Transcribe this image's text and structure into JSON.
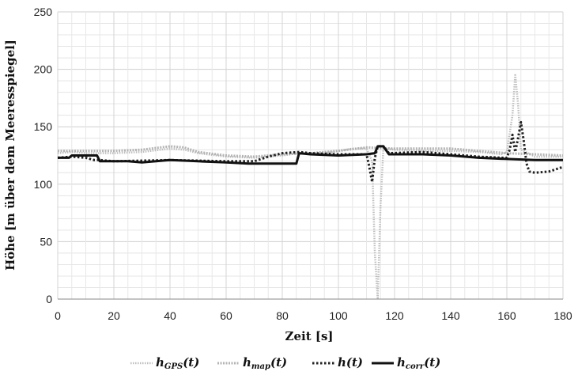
{
  "chart_data": {
    "type": "line",
    "title": "",
    "xlabel": "Zeit [s]",
    "ylabel": "Höhe [m über dem Meeresspiegel]",
    "xlim": [
      0,
      180
    ],
    "ylim": [
      0,
      250
    ],
    "x_ticks": [
      0,
      20,
      40,
      60,
      80,
      100,
      120,
      140,
      160,
      180
    ],
    "y_ticks": [
      0,
      50,
      100,
      150,
      200,
      250
    ],
    "grid": true,
    "legend_position": "bottom",
    "series": [
      {
        "name": "hGPS(t)",
        "legend": {
          "main": "h",
          "sub": "GPS",
          "suffix": "(t)"
        },
        "style": "dotted-light",
        "color": "#b8b8b8",
        "points": [
          [
            0,
            127
          ],
          [
            5,
            128
          ],
          [
            10,
            127
          ],
          [
            20,
            127
          ],
          [
            30,
            128
          ],
          [
            40,
            131
          ],
          [
            45,
            130
          ],
          [
            50,
            127
          ],
          [
            60,
            124
          ],
          [
            70,
            123
          ],
          [
            80,
            125
          ],
          [
            86,
            127
          ],
          [
            95,
            127
          ],
          [
            105,
            131
          ],
          [
            110,
            131
          ],
          [
            112,
            120
          ],
          [
            113,
            40
          ],
          [
            114,
            0
          ],
          [
            115,
            80
          ],
          [
            116,
            131
          ],
          [
            120,
            130
          ],
          [
            130,
            129
          ],
          [
            140,
            129
          ],
          [
            150,
            128
          ],
          [
            158,
            126
          ],
          [
            160,
            128
          ],
          [
            162,
            160
          ],
          [
            163,
            195
          ],
          [
            164,
            170
          ],
          [
            165,
            130
          ],
          [
            170,
            124
          ],
          [
            180,
            124
          ]
        ]
      },
      {
        "name": "hmap(t)",
        "legend": {
          "main": "h",
          "sub": "map",
          "suffix": "(t)"
        },
        "style": "dashed-light",
        "color": "#a8a8a8",
        "points": [
          [
            0,
            129
          ],
          [
            10,
            129
          ],
          [
            20,
            129
          ],
          [
            30,
            130
          ],
          [
            40,
            133
          ],
          [
            45,
            132
          ],
          [
            50,
            128
          ],
          [
            60,
            125
          ],
          [
            70,
            124
          ],
          [
            80,
            126
          ],
          [
            90,
            127
          ],
          [
            100,
            129
          ],
          [
            110,
            132
          ],
          [
            120,
            131
          ],
          [
            130,
            131
          ],
          [
            140,
            131
          ],
          [
            150,
            129
          ],
          [
            160,
            127
          ],
          [
            170,
            126
          ],
          [
            180,
            125
          ]
        ]
      },
      {
        "name": "h(t)",
        "legend": {
          "main": "h",
          "sub": "",
          "suffix": "(t)"
        },
        "style": "dotted-heavy",
        "color": "#222222",
        "points": [
          [
            0,
            123
          ],
          [
            5,
            124
          ],
          [
            10,
            123
          ],
          [
            13,
            121
          ],
          [
            15,
            121
          ],
          [
            20,
            120
          ],
          [
            40,
            121
          ],
          [
            60,
            120
          ],
          [
            70,
            120
          ],
          [
            75,
            124
          ],
          [
            80,
            127
          ],
          [
            86,
            128
          ],
          [
            90,
            127
          ],
          [
            100,
            126
          ],
          [
            110,
            126
          ],
          [
            111,
            115
          ],
          [
            112,
            102
          ],
          [
            113,
            123
          ],
          [
            114,
            133
          ],
          [
            116,
            133
          ],
          [
            118,
            127
          ],
          [
            130,
            128
          ],
          [
            140,
            126
          ],
          [
            150,
            124
          ],
          [
            158,
            123
          ],
          [
            160,
            123
          ],
          [
            161,
            130
          ],
          [
            162,
            143
          ],
          [
            163,
            128
          ],
          [
            164,
            140
          ],
          [
            165,
            154
          ],
          [
            166,
            138
          ],
          [
            167,
            118
          ],
          [
            168,
            111
          ],
          [
            170,
            110
          ],
          [
            175,
            111
          ],
          [
            180,
            115
          ]
        ]
      },
      {
        "name": "hcorr(t)",
        "legend": {
          "main": "h",
          "sub": "corr",
          "suffix": "(t)"
        },
        "style": "solid-heavy",
        "color": "#111111",
        "points": [
          [
            0,
            123
          ],
          [
            4,
            123
          ],
          [
            5,
            125
          ],
          [
            14,
            125
          ],
          [
            15,
            120
          ],
          [
            25,
            120
          ],
          [
            30,
            119
          ],
          [
            40,
            121
          ],
          [
            50,
            120
          ],
          [
            60,
            119
          ],
          [
            68,
            118
          ],
          [
            75,
            118
          ],
          [
            85,
            118
          ],
          [
            86,
            127
          ],
          [
            90,
            126
          ],
          [
            100,
            125
          ],
          [
            110,
            126
          ],
          [
            113,
            127
          ],
          [
            114,
            133
          ],
          [
            116,
            133
          ],
          [
            118,
            126
          ],
          [
            130,
            126
          ],
          [
            140,
            125
          ],
          [
            150,
            123
          ],
          [
            160,
            122
          ],
          [
            170,
            121
          ],
          [
            180,
            121
          ]
        ]
      }
    ]
  }
}
